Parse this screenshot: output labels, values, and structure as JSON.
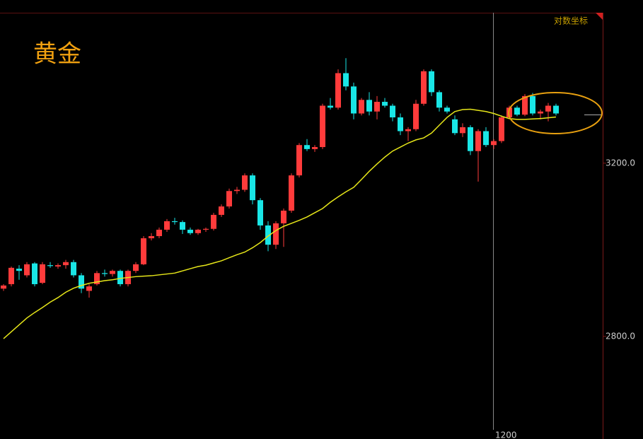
{
  "chart_data": {
    "type": "candlestick",
    "title": "黄金",
    "scale_label": "对数坐标",
    "crosshair_label": "1200",
    "log_scale": true,
    "ylim": [
      2587,
      3629
    ],
    "yticks": [
      {
        "value": 3200,
        "label": "3200.0"
      },
      {
        "value": 2800,
        "label": "2800.0"
      }
    ],
    "up_color": "#ff3b3b",
    "down_color": "#19e6e6",
    "open": [
      2905,
      2915,
      2950,
      2935,
      2962,
      2918,
      2958,
      2955,
      2958,
      2965,
      2935,
      2900,
      2915,
      2940,
      2938,
      2945,
      2915,
      2945,
      2960,
      3020,
      3025,
      3040,
      3060,
      3058,
      3040,
      3032,
      3040,
      3042,
      3075,
      3095,
      3132,
      3135,
      3170,
      3110,
      3050,
      3005,
      3055,
      3085,
      3170,
      3245,
      3235,
      3240,
      3345,
      3340,
      3430,
      3395,
      3325,
      3360,
      3330,
      3355,
      3345,
      3315,
      3280,
      3285,
      3350,
      3435,
      3380,
      3340,
      3310,
      3275,
      3290,
      3230,
      3280,
      3245,
      3255,
      3315,
      3340,
      3322,
      3370,
      3325,
      3330,
      3345
    ],
    "high": [
      2915,
      2955,
      2958,
      2965,
      2965,
      2965,
      2965,
      2962,
      2970,
      2970,
      2940,
      2915,
      2945,
      2948,
      2948,
      2948,
      2948,
      2965,
      3025,
      3032,
      3045,
      3065,
      3068,
      3062,
      3045,
      3042,
      3045,
      3080,
      3100,
      3138,
      3142,
      3175,
      3175,
      3115,
      3060,
      3060,
      3090,
      3175,
      3250,
      3260,
      3245,
      3350,
      3365,
      3440,
      3470,
      3405,
      3365,
      3380,
      3370,
      3365,
      3350,
      3325,
      3290,
      3360,
      3440,
      3440,
      3385,
      3345,
      3320,
      3300,
      3295,
      3285,
      3290,
      3260,
      3320,
      3345,
      3345,
      3375,
      3378,
      3335,
      3352,
      3350
    ],
    "low": [
      2900,
      2910,
      2925,
      2930,
      2910,
      2915,
      2952,
      2950,
      2950,
      2930,
      2895,
      2885,
      2912,
      2932,
      2932,
      2910,
      2910,
      2940,
      2958,
      3015,
      3020,
      3035,
      3052,
      3030,
      3028,
      3028,
      3035,
      3038,
      3070,
      3090,
      3125,
      3130,
      3100,
      3040,
      2990,
      2995,
      3000,
      3080,
      3165,
      3230,
      3228,
      3235,
      3335,
      3335,
      3385,
      3310,
      3320,
      3320,
      3310,
      3340,
      3305,
      3270,
      3255,
      3280,
      3345,
      3370,
      3330,
      3325,
      3270,
      3265,
      3220,
      3155,
      3240,
      3235,
      3250,
      3310,
      3318,
      3318,
      3320,
      3310,
      3305,
      3320
    ],
    "close": [
      2912,
      2952,
      2945,
      2960,
      2915,
      2960,
      2956,
      2958,
      2965,
      2935,
      2905,
      2910,
      2940,
      2938,
      2945,
      2915,
      2945,
      2960,
      3020,
      3025,
      3040,
      3060,
      3058,
      3040,
      3032,
      3040,
      3042,
      3075,
      3095,
      3132,
      3135,
      3170,
      3110,
      3050,
      3005,
      3055,
      3085,
      3170,
      3245,
      3235,
      3240,
      3345,
      3340,
      3430,
      3395,
      3325,
      3360,
      3330,
      3355,
      3345,
      3315,
      3280,
      3285,
      3350,
      3435,
      3380,
      3340,
      3330,
      3275,
      3290,
      3230,
      3280,
      3245,
      3255,
      3315,
      3340,
      3322,
      3370,
      3325,
      3330,
      3345,
      3325
    ],
    "ma": {
      "color": "#e6e619",
      "values": [
        2795,
        2810,
        2825,
        2840,
        2852,
        2863,
        2875,
        2885,
        2897,
        2906,
        2912,
        2917,
        2920,
        2923,
        2925,
        2928,
        2930,
        2932,
        2933,
        2934,
        2936,
        2938,
        2940,
        2945,
        2950,
        2955,
        2958,
        2963,
        2968,
        2975,
        2982,
        2988,
        2998,
        3010,
        3025,
        3038,
        3048,
        3055,
        3062,
        3070,
        3080,
        3090,
        3105,
        3118,
        3130,
        3141,
        3160,
        3180,
        3198,
        3215,
        3230,
        3240,
        3250,
        3258,
        3263,
        3275,
        3295,
        3315,
        3330,
        3335,
        3336,
        3333,
        3330,
        3325,
        3318,
        3312,
        3310,
        3310,
        3311,
        3312,
        3314,
        3316
      ]
    }
  }
}
